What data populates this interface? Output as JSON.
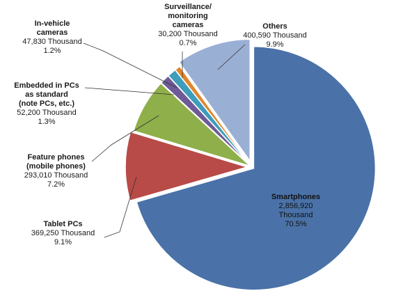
{
  "chart_data": {
    "type": "pie",
    "title": "",
    "unit": "Thousand",
    "legend": "none",
    "slices": [
      {
        "name": "Smartphones",
        "value_text": "2,856,920\nThousand",
        "value": 2856920,
        "percent": 70.5,
        "percent_text": "70.5%",
        "color": "#4A72A8"
      },
      {
        "name": "Tablet PCs",
        "value_text": "369,250 Thousand",
        "value": 369250,
        "percent": 9.1,
        "percent_text": "9.1%",
        "color": "#B84B47"
      },
      {
        "name": "Feature phones\n(mobile phones)",
        "value_text": "293,010 Thousand",
        "value": 293010,
        "percent": 7.2,
        "percent_text": "7.2%",
        "color": "#8FAF4A"
      },
      {
        "name": "Embedded in PCs\nas standard\n(note PCs, etc.)",
        "value_text": "52,200 Thousand",
        "value": 52200,
        "percent": 1.3,
        "percent_text": "1.3%",
        "color": "#6E5A96"
      },
      {
        "name": "In-vehicle\ncameras",
        "value_text": "47,830 Thousand",
        "value": 47830,
        "percent": 1.2,
        "percent_text": "1.2%",
        "color": "#3D9DBB"
      },
      {
        "name": "Surveillance/\nmonitoring\ncameras",
        "value_text": "30,200 Thousand",
        "value": 30200,
        "percent": 0.7,
        "percent_text": "0.7%",
        "color": "#E0862E"
      },
      {
        "name": "Others",
        "value_text": "400,590 Thousand",
        "value": 400590,
        "percent": 9.9,
        "percent_text": "9.9%",
        "color": "#9AAFD4"
      }
    ]
  }
}
